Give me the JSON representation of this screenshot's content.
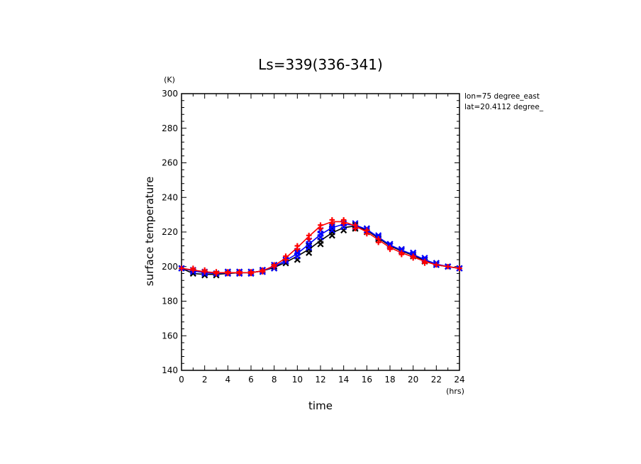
{
  "chart_data": {
    "type": "line",
    "title": "Ls=339(336-341)",
    "xlabel": "time",
    "ylabel": "surface temperature",
    "x_unit": "(hrs)",
    "y_unit": "(K)",
    "annotations": [
      "lon=75 degree_east",
      "lat=20.4112 degree_"
    ],
    "xlim": [
      0,
      24
    ],
    "ylim": [
      140,
      300
    ],
    "x_ticks": [
      0,
      2,
      4,
      6,
      8,
      10,
      12,
      14,
      16,
      18,
      20,
      22,
      24
    ],
    "y_ticks": [
      140,
      160,
      180,
      200,
      220,
      240,
      260,
      280,
      300
    ],
    "grid": false,
    "x": [
      0,
      1,
      2,
      3,
      4,
      5,
      6,
      7,
      8,
      9,
      10,
      11,
      12,
      13,
      14,
      15,
      16,
      17,
      18,
      19,
      20,
      21,
      22,
      23,
      24
    ],
    "series": [
      {
        "color": "#000000",
        "marker": "x",
        "values": [
          199,
          196,
          195.5,
          195.5,
          196,
          196.5,
          196.5,
          197.5,
          199.5,
          202.5,
          206,
          210,
          215,
          219.5,
          222.5,
          223.5,
          221,
          216.5,
          212,
          209,
          206.5,
          203.5,
          201,
          200,
          199
        ],
        "scatter": [
          [
            0,
            199
          ],
          [
            1,
            196
          ],
          [
            1,
            197
          ],
          [
            2,
            195
          ],
          [
            2,
            196
          ],
          [
            3,
            195
          ],
          [
            3,
            196
          ],
          [
            4,
            196
          ],
          [
            4,
            197
          ],
          [
            5,
            196
          ],
          [
            5,
            197
          ],
          [
            6,
            196
          ],
          [
            6,
            197
          ],
          [
            7,
            197
          ],
          [
            7,
            198
          ],
          [
            8,
            199
          ],
          [
            8,
            200
          ],
          [
            9,
            202
          ],
          [
            9,
            203
          ],
          [
            10,
            204
          ],
          [
            10,
            206
          ],
          [
            10,
            208
          ],
          [
            11,
            208
          ],
          [
            11,
            210
          ],
          [
            11,
            212
          ],
          [
            12,
            213
          ],
          [
            12,
            215
          ],
          [
            12,
            217
          ],
          [
            13,
            218
          ],
          [
            13,
            220
          ],
          [
            13,
            222
          ],
          [
            14,
            221
          ],
          [
            14,
            223
          ],
          [
            14,
            225
          ],
          [
            15,
            222
          ],
          [
            15,
            224
          ],
          [
            16,
            220
          ],
          [
            16,
            222
          ],
          [
            17,
            216
          ],
          [
            17,
            217
          ],
          [
            18,
            212
          ],
          [
            18,
            213
          ],
          [
            19,
            209
          ],
          [
            19,
            210
          ],
          [
            20,
            206
          ],
          [
            20,
            207
          ],
          [
            21,
            203
          ],
          [
            21,
            204
          ],
          [
            22,
            201
          ],
          [
            22,
            202
          ],
          [
            23,
            200
          ],
          [
            24,
            199
          ]
        ]
      },
      {
        "color": "#0000ff",
        "marker": "x",
        "values": [
          199,
          197.5,
          196.5,
          196,
          196.5,
          196.5,
          196.5,
          197.5,
          200,
          203.5,
          207.5,
          213,
          218.5,
          222.5,
          224.5,
          224,
          221.5,
          217,
          212.5,
          209.5,
          207,
          204,
          201.5,
          200,
          199
        ],
        "scatter": [
          [
            0,
            199
          ],
          [
            1,
            197
          ],
          [
            1,
            198
          ],
          [
            2,
            196
          ],
          [
            2,
            197
          ],
          [
            3,
            196
          ],
          [
            4,
            196
          ],
          [
            4,
            197
          ],
          [
            5,
            196
          ],
          [
            5,
            197
          ],
          [
            6,
            196
          ],
          [
            6,
            197
          ],
          [
            7,
            197
          ],
          [
            7,
            198
          ],
          [
            8,
            199
          ],
          [
            8,
            201
          ],
          [
            9,
            203
          ],
          [
            9,
            204
          ],
          [
            10,
            206
          ],
          [
            10,
            208
          ],
          [
            10,
            209
          ],
          [
            11,
            211
          ],
          [
            11,
            213
          ],
          [
            11,
            215
          ],
          [
            12,
            217
          ],
          [
            12,
            219
          ],
          [
            12,
            221
          ],
          [
            13,
            221
          ],
          [
            13,
            223
          ],
          [
            13,
            224
          ],
          [
            14,
            223
          ],
          [
            14,
            225
          ],
          [
            15,
            223
          ],
          [
            15,
            225
          ],
          [
            16,
            221
          ],
          [
            16,
            222
          ],
          [
            17,
            217
          ],
          [
            17,
            218
          ],
          [
            18,
            212
          ],
          [
            18,
            213
          ],
          [
            19,
            209
          ],
          [
            19,
            210
          ],
          [
            20,
            207
          ],
          [
            20,
            208
          ],
          [
            21,
            204
          ],
          [
            21,
            205
          ],
          [
            22,
            201
          ],
          [
            22,
            202
          ],
          [
            23,
            200
          ],
          [
            24,
            199
          ]
        ]
      },
      {
        "color": "#ff0000",
        "marker": "+",
        "values": [
          199,
          198,
          197,
          196.5,
          196.5,
          196.5,
          196.5,
          197.5,
          200.5,
          205,
          211,
          217.5,
          223.5,
          226,
          226,
          223.5,
          220,
          215.5,
          211,
          208,
          205.5,
          203,
          201,
          200,
          199
        ],
        "scatter": [
          [
            0,
            199
          ],
          [
            1,
            198
          ],
          [
            1,
            199
          ],
          [
            2,
            197
          ],
          [
            2,
            198
          ],
          [
            3,
            196
          ],
          [
            3,
            197
          ],
          [
            4,
            196
          ],
          [
            4,
            197
          ],
          [
            5,
            196
          ],
          [
            5,
            197
          ],
          [
            6,
            196
          ],
          [
            6,
            197
          ],
          [
            7,
            197
          ],
          [
            7,
            198
          ],
          [
            8,
            200
          ],
          [
            8,
            201
          ],
          [
            9,
            204
          ],
          [
            9,
            206
          ],
          [
            10,
            210
          ],
          [
            10,
            212
          ],
          [
            11,
            216
          ],
          [
            11,
            218
          ],
          [
            12,
            222
          ],
          [
            12,
            224
          ],
          [
            13,
            225
          ],
          [
            13,
            227
          ],
          [
            14,
            225
          ],
          [
            14,
            227
          ],
          [
            15,
            222
          ],
          [
            15,
            224
          ],
          [
            16,
            219
          ],
          [
            16,
            221
          ],
          [
            17,
            214
          ],
          [
            17,
            216
          ],
          [
            18,
            210
          ],
          [
            18,
            211
          ],
          [
            19,
            207
          ],
          [
            19,
            208
          ],
          [
            20,
            205
          ],
          [
            20,
            206
          ],
          [
            21,
            202
          ],
          [
            21,
            203
          ],
          [
            22,
            201
          ],
          [
            23,
            200
          ],
          [
            24,
            199
          ]
        ]
      }
    ]
  }
}
